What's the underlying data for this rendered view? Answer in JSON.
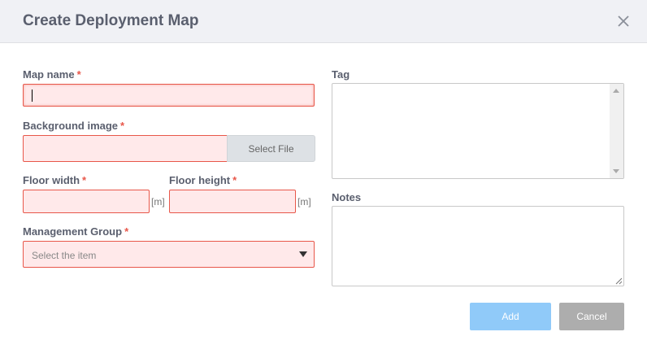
{
  "dialog": {
    "title": "Create Deployment Map",
    "close_icon": "close-icon"
  },
  "form": {
    "map_name": {
      "label": "Map name",
      "required": "*",
      "value": ""
    },
    "background_image": {
      "label": "Background image",
      "required": "*",
      "button": "Select File"
    },
    "floor_width": {
      "label": "Floor width",
      "required": "*",
      "unit": "[m]"
    },
    "floor_height": {
      "label": "Floor height",
      "required": "*",
      "unit": "[m]"
    },
    "management_group": {
      "label": "Management Group",
      "required": "*",
      "placeholder": "Select the item"
    },
    "tag": {
      "label": "Tag"
    },
    "notes": {
      "label": "Notes"
    }
  },
  "buttons": {
    "add": "Add",
    "cancel": "Cancel"
  },
  "colors": {
    "error_border": "#e8574a",
    "error_bg": "#ffe9ea",
    "add": "#90caf9",
    "cancel": "#adadad"
  }
}
